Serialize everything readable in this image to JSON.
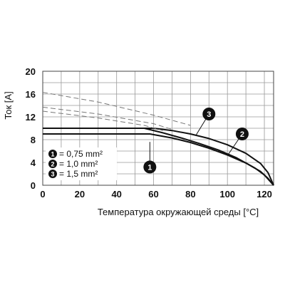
{
  "chart_data": {
    "type": "line",
    "xlabel": "Температура окружающей среды [°C]",
    "ylabel": "Ток [A]",
    "xlim": [
      0,
      125
    ],
    "ylim": [
      0,
      20
    ],
    "x_ticks": [
      "0",
      "20",
      "40",
      "60",
      "80",
      "100",
      "120"
    ],
    "y_ticks": [
      "0",
      "4",
      "8",
      "12",
      "16",
      "20"
    ],
    "grid": true,
    "legend": {
      "placement": "lower-left",
      "entries": [
        {
          "marker": "1",
          "text": "= 0,75 mm²"
        },
        {
          "marker": "2",
          "text": "= 1,0 mm²"
        },
        {
          "marker": "3",
          "text": "= 1,5 mm²"
        }
      ]
    },
    "series": [
      {
        "marker": "1",
        "style": "solid",
        "x": [
          0,
          58,
          70,
          80,
          90,
          100,
          110,
          118,
          122,
          125
        ],
        "y": [
          9,
          9,
          8.3,
          7.5,
          6.5,
          5.3,
          3.9,
          2.4,
          1.2,
          0
        ]
      },
      {
        "marker": "2",
        "style": "solid",
        "x": [
          0,
          55,
          65,
          75,
          85,
          95,
          105,
          115,
          120,
          125
        ],
        "y": [
          10,
          10,
          9.2,
          8.3,
          7.3,
          6.2,
          4.8,
          3.0,
          1.8,
          0
        ]
      },
      {
        "marker": "3",
        "style": "solid",
        "x": [
          0,
          60,
          70,
          80,
          90,
          100,
          110,
          118,
          122,
          125
        ],
        "y": [
          10,
          10,
          9.6,
          9.0,
          8.2,
          7.1,
          5.6,
          3.8,
          2.2,
          0
        ]
      },
      {
        "marker": "",
        "style": "dashed",
        "x": [
          0,
          30,
          60,
          80
        ],
        "y": [
          16.3,
          14.6,
          12.3,
          10.5
        ]
      },
      {
        "marker": "",
        "style": "dashed",
        "x": [
          0,
          30,
          60,
          70
        ],
        "y": [
          13.7,
          12.5,
          10.8,
          9.8
        ]
      },
      {
        "marker": "",
        "style": "dashed",
        "x": [
          0,
          30,
          55,
          65
        ],
        "y": [
          13.0,
          11.8,
          10.5,
          9.6
        ]
      }
    ],
    "callouts": [
      {
        "marker": "1",
        "x": 58,
        "y": 7.6,
        "badge_x": 58,
        "badge_y": 3.2
      },
      {
        "marker": "2",
        "x": 100,
        "y": 5.2,
        "badge_x": 108,
        "badge_y": 9.0
      },
      {
        "marker": "3",
        "x": 83,
        "y": 8.8,
        "badge_x": 90,
        "badge_y": 12.5
      }
    ]
  }
}
